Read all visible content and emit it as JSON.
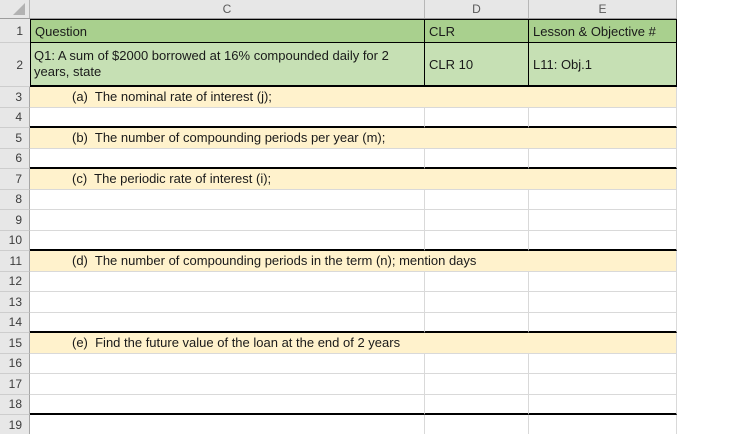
{
  "sheet": {
    "columns": [
      {
        "letter": "C"
      },
      {
        "letter": "D"
      },
      {
        "letter": "E"
      }
    ]
  },
  "header_row": {
    "number": "1",
    "cells": {
      "question": "Question",
      "clr": "CLR",
      "lesson": "Lesson & Objective #"
    }
  },
  "question_row": {
    "number": "2",
    "cells": {
      "question": "Q1: A sum of $2000 borrowed at 16% compounded daily for 2\nyears, state",
      "clr": "CLR 10",
      "lesson": "L11: Obj.1"
    }
  },
  "body_rows": [
    {
      "number": "3",
      "text": "(a)  The nominal rate of interest (j);",
      "highlight": true,
      "divider_below": false
    },
    {
      "number": "4",
      "text": "",
      "highlight": false,
      "divider_below": true
    },
    {
      "number": "5",
      "text": "(b)  The number of compounding periods per year (m);",
      "highlight": true,
      "divider_below": false
    },
    {
      "number": "6",
      "text": "",
      "highlight": false,
      "divider_below": true
    },
    {
      "number": "7",
      "text": "(c)  The periodic rate of interest (i);",
      "highlight": true,
      "divider_below": false
    },
    {
      "number": "8",
      "text": "",
      "highlight": false,
      "divider_below": false
    },
    {
      "number": "9",
      "text": "",
      "highlight": false,
      "divider_below": false
    },
    {
      "number": "10",
      "text": "",
      "highlight": false,
      "divider_below": true
    },
    {
      "number": "11",
      "text": "(d)  The number of compounding periods in the term (n); mention days",
      "highlight": true,
      "divider_below": false
    },
    {
      "number": "12",
      "text": "",
      "highlight": false,
      "divider_below": false
    },
    {
      "number": "13",
      "text": "",
      "highlight": false,
      "divider_below": false
    },
    {
      "number": "14",
      "text": "",
      "highlight": false,
      "divider_below": true
    },
    {
      "number": "15",
      "text": "(e)  Find the future value of the loan at the end of 2 years",
      "highlight": true,
      "divider_below": false
    },
    {
      "number": "16",
      "text": "",
      "highlight": false,
      "divider_below": false
    },
    {
      "number": "17",
      "text": "",
      "highlight": false,
      "divider_below": false
    },
    {
      "number": "18",
      "text": "",
      "highlight": false,
      "divider_below": true
    },
    {
      "number": "19",
      "text": "",
      "highlight": false,
      "divider_below": false
    }
  ],
  "colors": {
    "header_fill": "#a9d08e",
    "subheader_fill": "#c6e0b4",
    "highlight_fill": "#fff2cc",
    "grid_line": "#d9d9d9",
    "section_border": "#000000",
    "chrome_fill": "#e7e7e7"
  }
}
